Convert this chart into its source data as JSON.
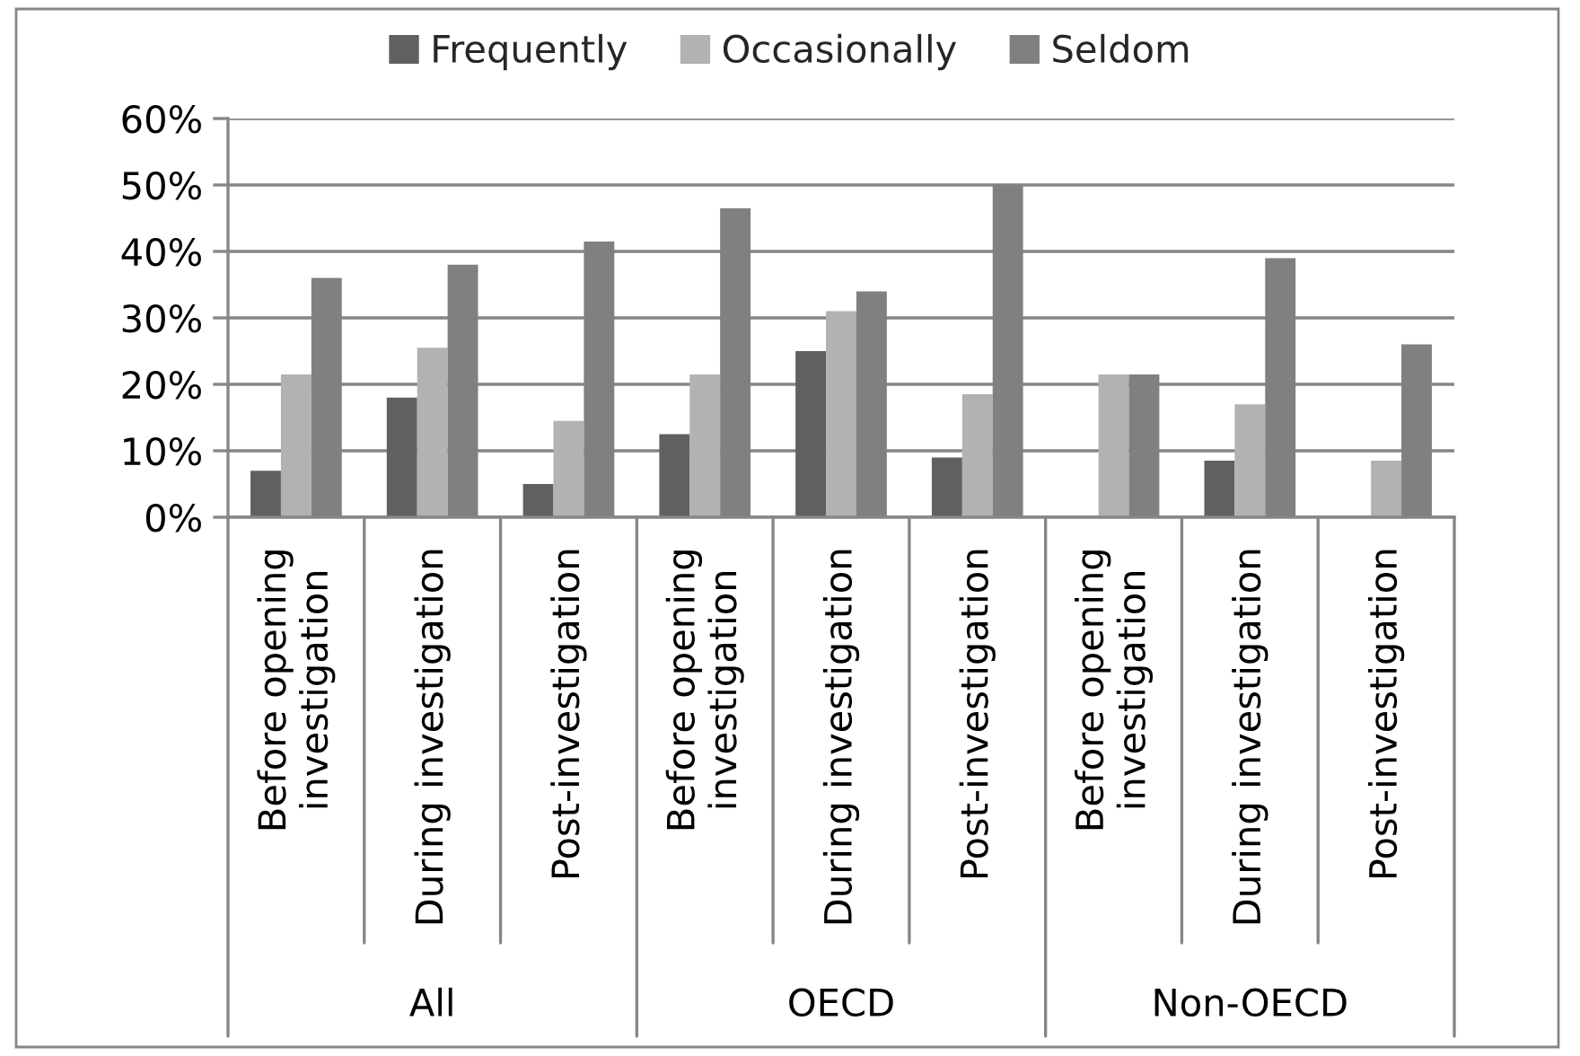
{
  "chart_data": {
    "type": "bar",
    "categories": [
      "Before opening\ninvestigation",
      "During investigation",
      "Post-investigation",
      "Before opening\ninvestigation",
      "During investigation",
      "Post-investigation",
      "Before opening\ninvestigation",
      "During investigation",
      "Post-investigation"
    ],
    "series": [
      {
        "name": "Frequently",
        "color": "#606060",
        "values": [
          7,
          18,
          5,
          12.5,
          25,
          9,
          0,
          8.5,
          0
        ]
      },
      {
        "name": "Occasionally",
        "color": "#b2b2b2",
        "values": [
          21.5,
          25.5,
          14.5,
          21.5,
          31,
          18.5,
          21.5,
          17,
          8.5
        ]
      },
      {
        "name": "Seldom",
        "color": "#808080",
        "values": [
          36,
          38,
          41.5,
          46.5,
          34,
          50,
          21.5,
          39,
          26
        ]
      }
    ],
    "ylim": [
      0,
      60
    ],
    "yticks": [
      {
        "value": 0,
        "label": "0%"
      },
      {
        "value": 10,
        "label": "10%"
      },
      {
        "value": 20,
        "label": "20%"
      },
      {
        "value": 30,
        "label": "30%"
      },
      {
        "value": 40,
        "label": "40%"
      },
      {
        "value": 50,
        "label": "50%"
      },
      {
        "value": 60,
        "label": "60%"
      }
    ],
    "grid": "y",
    "legend": "top",
    "annotations": [
      "All",
      "OECD",
      "Non-OECD"
    ]
  }
}
